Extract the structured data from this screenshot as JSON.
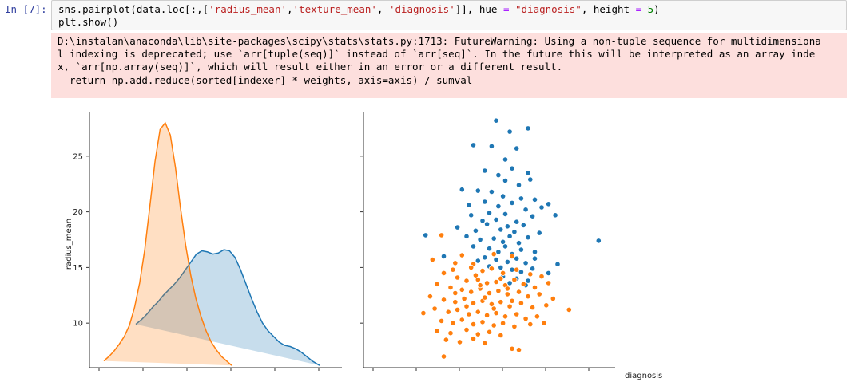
{
  "cell": {
    "prompt": "In [7]:",
    "code_lines": [
      "sns.pairplot(data.loc[:,['radius_mean','texture_mean', 'diagnosis']], hue = \"diagnosis\", height = 5)",
      "plt.show()"
    ]
  },
  "stderr": {
    "lines": [
      "D:\\instalan\\anaconda\\lib\\site-packages\\scipy\\stats\\stats.py:1713: FutureWarning: Using a non-tuple sequence for multidimensiona",
      "l indexing is deprecated; use `arr[tuple(seq)]` instead of `arr[seq]`. In the future this will be interpreted as an array inde",
      "x, `arr[np.array(seq)]`, which will result either in an error or a different result.",
      "  return np.add.reduce(sorted[indexer] * weights, axis=axis) / sumval"
    ]
  },
  "colors": {
    "blue": "#1f77b4",
    "orange": "#ff7f0e"
  },
  "chart_data": [
    {
      "type": "area",
      "description_kde": true,
      "ylabel": "radius_mean",
      "yticks": [
        10,
        15,
        20,
        25
      ],
      "ylim": [
        6.0,
        29.0
      ],
      "series": [
        {
          "color": "#1f77b4",
          "x": [
            0.0,
            0.03,
            0.06,
            0.09,
            0.12,
            0.15,
            0.18,
            0.21,
            0.24,
            0.27,
            0.3,
            0.33,
            0.36,
            0.39,
            0.42,
            0.45,
            0.48,
            0.51,
            0.54,
            0.57,
            0.6,
            0.63,
            0.66,
            0.69,
            0.72,
            0.75,
            0.78,
            0.81,
            0.84,
            0.87,
            0.9,
            0.93,
            0.96,
            1.0
          ],
          "y": [
            9.9,
            10.3,
            10.8,
            11.4,
            11.9,
            12.5,
            13.0,
            13.5,
            14.1,
            14.8,
            15.5,
            16.2,
            16.5,
            16.4,
            16.2,
            16.3,
            16.6,
            16.5,
            15.9,
            14.8,
            13.5,
            12.2,
            11.0,
            10.0,
            9.3,
            8.8,
            8.3,
            8.0,
            7.9,
            7.7,
            7.4,
            7.0,
            6.6,
            6.2
          ]
        },
        {
          "color": "#ff7f0e",
          "x": [
            0.0,
            0.04,
            0.08,
            0.12,
            0.16,
            0.2,
            0.24,
            0.28,
            0.32,
            0.36,
            0.4,
            0.44,
            0.48,
            0.52,
            0.56,
            0.6,
            0.64,
            0.68,
            0.72,
            0.76,
            0.8,
            0.84,
            0.88,
            0.92,
            0.96,
            1.0
          ],
          "y": [
            6.6,
            7.0,
            7.5,
            8.1,
            8.8,
            9.8,
            11.4,
            13.6,
            16.6,
            20.5,
            24.5,
            27.4,
            28.0,
            26.9,
            24.0,
            20.3,
            17.0,
            14.3,
            12.2,
            10.6,
            9.3,
            8.3,
            7.6,
            7.0,
            6.6,
            6.2
          ]
        }
      ]
    },
    {
      "type": "scatter",
      "xlabel": "diagnosis",
      "ylim": [
        6.0,
        29.0
      ],
      "series": [
        {
          "color": "#1f77b4",
          "points": [
            [
              0.53,
              28.2
            ],
            [
              0.59,
              27.2
            ],
            [
              0.67,
              27.5
            ],
            [
              0.43,
              26.0
            ],
            [
              0.51,
              25.9
            ],
            [
              0.62,
              25.7
            ],
            [
              0.57,
              24.7
            ],
            [
              0.48,
              23.7
            ],
            [
              0.6,
              23.9
            ],
            [
              0.67,
              23.5
            ],
            [
              0.54,
              23.3
            ],
            [
              0.57,
              22.8
            ],
            [
              0.68,
              22.9
            ],
            [
              0.63,
              22.4
            ],
            [
              0.38,
              22.0
            ],
            [
              0.45,
              21.9
            ],
            [
              0.51,
              21.8
            ],
            [
              0.56,
              21.4
            ],
            [
              0.64,
              21.2
            ],
            [
              0.7,
              21.1
            ],
            [
              0.41,
              20.6
            ],
            [
              0.48,
              20.9
            ],
            [
              0.54,
              20.5
            ],
            [
              0.6,
              20.8
            ],
            [
              0.66,
              20.2
            ],
            [
              0.73,
              20.4
            ],
            [
              0.76,
              20.7
            ],
            [
              0.79,
              19.7
            ],
            [
              0.42,
              19.7
            ],
            [
              0.47,
              19.2
            ],
            [
              0.5,
              19.9
            ],
            [
              0.53,
              19.3
            ],
            [
              0.57,
              19.8
            ],
            [
              0.62,
              19.1
            ],
            [
              0.69,
              19.6
            ],
            [
              0.36,
              18.6
            ],
            [
              0.44,
              18.3
            ],
            [
              0.49,
              18.9
            ],
            [
              0.55,
              18.4
            ],
            [
              0.58,
              18.7
            ],
            [
              0.61,
              18.2
            ],
            [
              0.65,
              18.8
            ],
            [
              0.72,
              18.1
            ],
            [
              0.22,
              17.9
            ],
            [
              0.4,
              17.8
            ],
            [
              0.46,
              17.5
            ],
            [
              0.52,
              17.6
            ],
            [
              0.56,
              17.3
            ],
            [
              0.59,
              17.8
            ],
            [
              0.63,
              17.2
            ],
            [
              0.67,
              17.7
            ],
            [
              0.43,
              16.9
            ],
            [
              0.5,
              16.7
            ],
            [
              0.54,
              16.4
            ],
            [
              0.57,
              16.9
            ],
            [
              0.6,
              16.2
            ],
            [
              0.64,
              16.6
            ],
            [
              0.7,
              16.4
            ],
            [
              0.3,
              16.0
            ],
            [
              0.48,
              15.9
            ],
            [
              0.53,
              15.7
            ],
            [
              0.58,
              15.5
            ],
            [
              0.62,
              15.8
            ],
            [
              0.66,
              15.4
            ],
            [
              0.8,
              15.3
            ],
            [
              0.55,
              15.0
            ],
            [
              0.6,
              14.8
            ],
            [
              0.64,
              14.6
            ],
            [
              0.69,
              14.9
            ],
            [
              0.76,
              14.5
            ],
            [
              0.98,
              17.4
            ],
            [
              0.56,
              14.2
            ],
            [
              0.62,
              14.0
            ],
            [
              0.67,
              13.8
            ],
            [
              0.59,
              13.6
            ],
            [
              0.66,
              13.4
            ],
            [
              0.5,
              15.1
            ],
            [
              0.45,
              15.6
            ],
            [
              0.7,
              15.8
            ]
          ]
        },
        {
          "color": "#ff7f0e",
          "points": [
            [
              0.29,
              17.9
            ],
            [
              0.25,
              15.7
            ],
            [
              0.38,
              16.1
            ],
            [
              0.43,
              15.3
            ],
            [
              0.52,
              16.2
            ],
            [
              0.6,
              16.0
            ],
            [
              0.35,
              15.4
            ],
            [
              0.42,
              15.0
            ],
            [
              0.47,
              14.7
            ],
            [
              0.51,
              14.9
            ],
            [
              0.56,
              14.5
            ],
            [
              0.62,
              14.8
            ],
            [
              0.68,
              14.4
            ],
            [
              0.73,
              14.2
            ],
            [
              0.3,
              14.5
            ],
            [
              0.36,
              14.1
            ],
            [
              0.4,
              13.8
            ],
            [
              0.45,
              13.9
            ],
            [
              0.49,
              13.6
            ],
            [
              0.53,
              13.7
            ],
            [
              0.57,
              13.4
            ],
            [
              0.61,
              13.9
            ],
            [
              0.65,
              13.5
            ],
            [
              0.7,
              13.2
            ],
            [
              0.76,
              13.6
            ],
            [
              0.27,
              13.5
            ],
            [
              0.33,
              13.2
            ],
            [
              0.38,
              13.0
            ],
            [
              0.42,
              12.8
            ],
            [
              0.46,
              13.1
            ],
            [
              0.5,
              12.7
            ],
            [
              0.54,
              12.9
            ],
            [
              0.58,
              12.6
            ],
            [
              0.63,
              12.8
            ],
            [
              0.67,
              12.4
            ],
            [
              0.72,
              12.6
            ],
            [
              0.78,
              12.2
            ],
            [
              0.24,
              12.4
            ],
            [
              0.3,
              12.1
            ],
            [
              0.35,
              11.9
            ],
            [
              0.39,
              12.2
            ],
            [
              0.43,
              11.8
            ],
            [
              0.47,
              12.0
            ],
            [
              0.51,
              11.7
            ],
            [
              0.55,
              11.9
            ],
            [
              0.59,
              11.5
            ],
            [
              0.64,
              11.8
            ],
            [
              0.69,
              11.4
            ],
            [
              0.75,
              11.6
            ],
            [
              0.85,
              11.2
            ],
            [
              0.26,
              11.3
            ],
            [
              0.32,
              11.0
            ],
            [
              0.36,
              11.2
            ],
            [
              0.41,
              10.8
            ],
            [
              0.45,
              11.0
            ],
            [
              0.49,
              10.7
            ],
            [
              0.53,
              10.9
            ],
            [
              0.57,
              10.6
            ],
            [
              0.62,
              10.8
            ],
            [
              0.66,
              10.4
            ],
            [
              0.71,
              10.6
            ],
            [
              0.21,
              10.9
            ],
            [
              0.29,
              10.2
            ],
            [
              0.34,
              10.0
            ],
            [
              0.38,
              10.3
            ],
            [
              0.43,
              9.9
            ],
            [
              0.47,
              10.1
            ],
            [
              0.52,
              9.8
            ],
            [
              0.56,
              10.0
            ],
            [
              0.61,
              9.7
            ],
            [
              0.68,
              9.9
            ],
            [
              0.27,
              9.3
            ],
            [
              0.33,
              9.1
            ],
            [
              0.4,
              9.4
            ],
            [
              0.45,
              9.0
            ],
            [
              0.5,
              9.2
            ],
            [
              0.55,
              8.9
            ],
            [
              0.31,
              8.5
            ],
            [
              0.37,
              8.3
            ],
            [
              0.43,
              8.6
            ],
            [
              0.6,
              7.7
            ],
            [
              0.63,
              7.6
            ],
            [
              0.3,
              7.0
            ],
            [
              0.48,
              8.2
            ],
            [
              0.74,
              10.0
            ],
            [
              0.34,
              14.8
            ],
            [
              0.44,
              14.3
            ],
            [
              0.55,
              14.0
            ],
            [
              0.48,
              12.3
            ],
            [
              0.6,
              12.0
            ],
            [
              0.4,
              11.5
            ],
            [
              0.52,
              11.3
            ],
            [
              0.35,
              12.7
            ],
            [
              0.46,
              13.4
            ],
            [
              0.58,
              13.1
            ]
          ]
        }
      ]
    }
  ]
}
